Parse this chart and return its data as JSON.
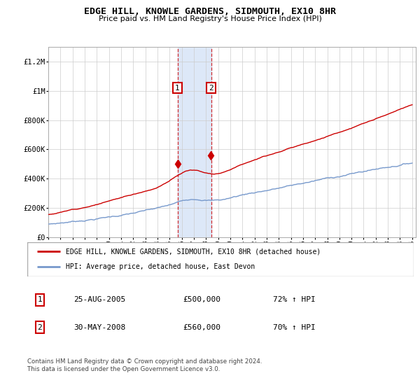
{
  "title": "EDGE HILL, KNOWLE GARDENS, SIDMOUTH, EX10 8HR",
  "subtitle": "Price paid vs. HM Land Registry's House Price Index (HPI)",
  "legend_line1": "EDGE HILL, KNOWLE GARDENS, SIDMOUTH, EX10 8HR (detached house)",
  "legend_line2": "HPI: Average price, detached house, East Devon",
  "annotation1_date": "25-AUG-2005",
  "annotation1_price": "£500,000",
  "annotation1_hpi": "72% ↑ HPI",
  "annotation1_year": 2005.65,
  "annotation1_value": 500000,
  "annotation2_date": "30-MAY-2008",
  "annotation2_price": "£560,000",
  "annotation2_hpi": "70% ↑ HPI",
  "annotation2_year": 2008.42,
  "annotation2_value": 560000,
  "footer": "Contains HM Land Registry data © Crown copyright and database right 2024.\nThis data is licensed under the Open Government Licence v3.0.",
  "red_color": "#cc0000",
  "blue_color": "#7799cc",
  "span_color": "#dde8f8",
  "ylim": [
    0,
    1300000
  ],
  "yticks": [
    0,
    200000,
    400000,
    600000,
    800000,
    1000000,
    1200000
  ],
  "ytick_labels": [
    "£0",
    "£200K",
    "£400K",
    "£600K",
    "£800K",
    "£1M",
    "£1.2M"
  ],
  "year_start": 1995,
  "year_end": 2025
}
